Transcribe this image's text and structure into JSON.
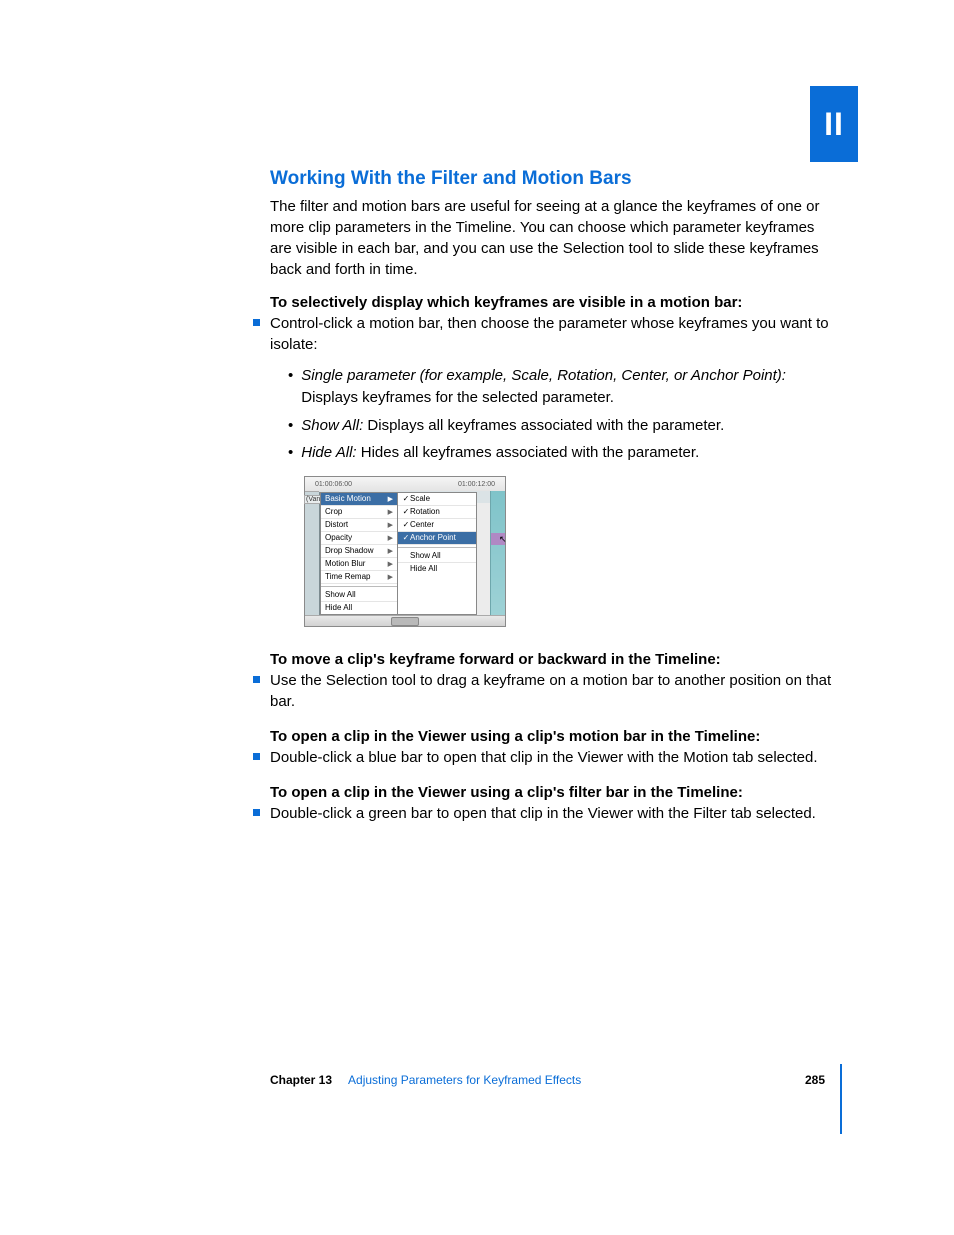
{
  "sideTab": {
    "label": "II",
    "bg": "#0a6dd7"
  },
  "title": "Working With the Filter and Motion Bars",
  "intro": "The filter and motion bars are useful for seeing at a glance the keyframes of one or more clip parameters in the Timeline. You can choose which parameter keyframes are visible in each bar, and you can use the Selection tool to slide these keyframes back and forth in time.",
  "section1": {
    "lead": "To selectively display which keyframes are visible in a motion bar:",
    "bullet": "Control-click a motion bar, then choose the parameter whose keyframes you want to isolate:",
    "subs": [
      {
        "em": "Single parameter (for example, Scale, Rotation, Center, or Anchor Point):",
        "rest": "  Displays keyframes for the selected parameter."
      },
      {
        "em": "Show All:",
        "rest": "  Displays all keyframes associated with the parameter."
      },
      {
        "em": "Hide All:",
        "rest": "  Hides all keyframes associated with the parameter."
      }
    ]
  },
  "figure": {
    "ruler_left": "01:00:06:00",
    "ruler_right": "01:00:12:00",
    "clip_label": "(Vana",
    "menu1": {
      "items": [
        "Basic Motion",
        "Crop",
        "Distort",
        "Opacity",
        "Drop Shadow",
        "Motion Blur",
        "Time Remap"
      ],
      "selected_index": 0,
      "footer": [
        "Show All",
        "Hide All"
      ]
    },
    "menu2": {
      "items": [
        {
          "label": "Scale",
          "checked": true
        },
        {
          "label": "Rotation",
          "checked": true
        },
        {
          "label": "Center",
          "checked": true
        },
        {
          "label": "Anchor Point",
          "checked": true,
          "selected": true
        }
      ],
      "footer": [
        "Show All",
        "Hide All"
      ]
    }
  },
  "section2": {
    "lead": "To move a clip's keyframe forward or backward in the Timeline:",
    "bullet": "Use the Selection tool to drag a keyframe on a motion bar to another position on that bar."
  },
  "section3": {
    "lead": "To open a clip in the Viewer using a clip's motion bar in the Timeline:",
    "bullet": "Double-click a blue bar to open that clip in the Viewer with the Motion tab selected."
  },
  "section4": {
    "lead": "To open a clip in the Viewer using a clip's filter bar in the Timeline:",
    "bullet": "Double-click a green bar to open that clip in the Viewer with the Filter tab selected."
  },
  "footer": {
    "chapter_label": "Chapter 13",
    "chapter_title": "Adjusting Parameters for Keyframed Effects",
    "page": "285"
  }
}
